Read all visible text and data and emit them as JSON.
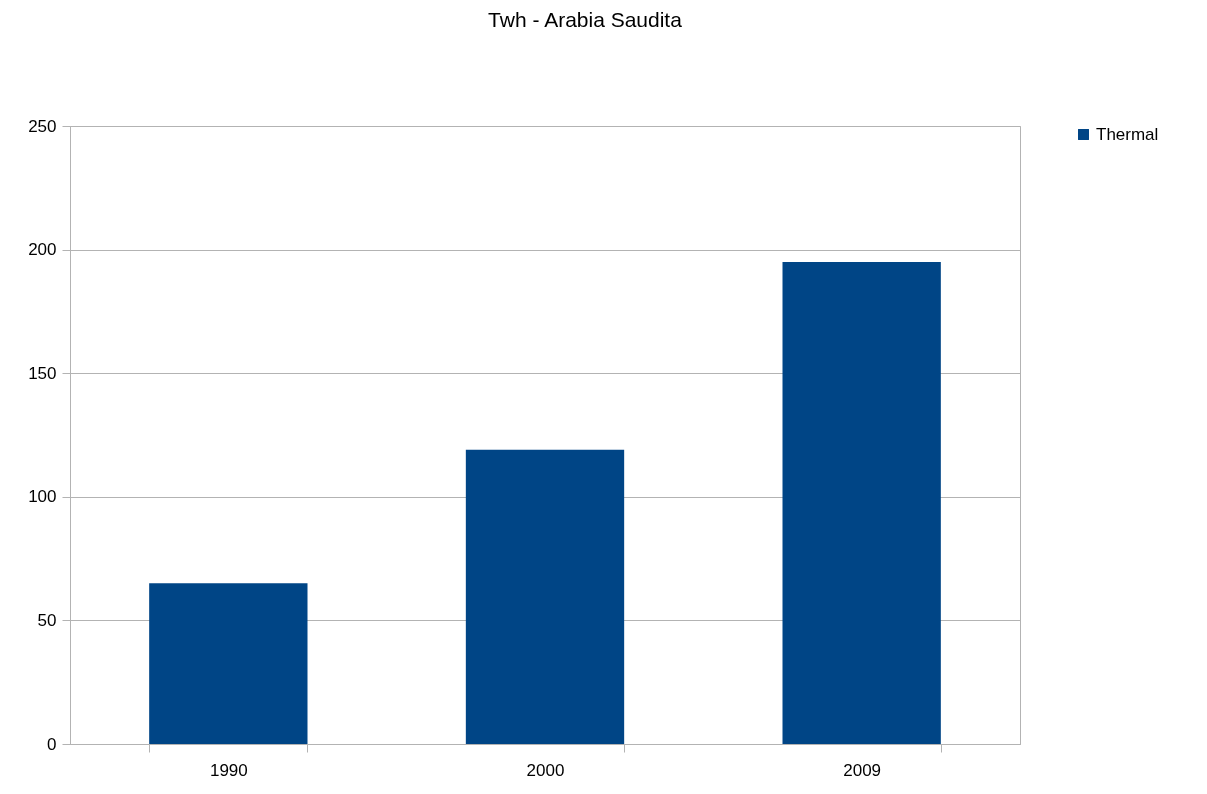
{
  "chart_data": {
    "type": "bar",
    "title": "Twh - Arabia Saudita",
    "categories": [
      "1990",
      "2000",
      "2009"
    ],
    "series": [
      {
        "name": "Thermal",
        "color": "#004586",
        "values": [
          65,
          119,
          195
        ]
      }
    ],
    "ylim": [
      0,
      250
    ],
    "yticks": [
      0,
      50,
      100,
      150,
      200,
      250
    ],
    "grid": "y",
    "legend": "right"
  }
}
